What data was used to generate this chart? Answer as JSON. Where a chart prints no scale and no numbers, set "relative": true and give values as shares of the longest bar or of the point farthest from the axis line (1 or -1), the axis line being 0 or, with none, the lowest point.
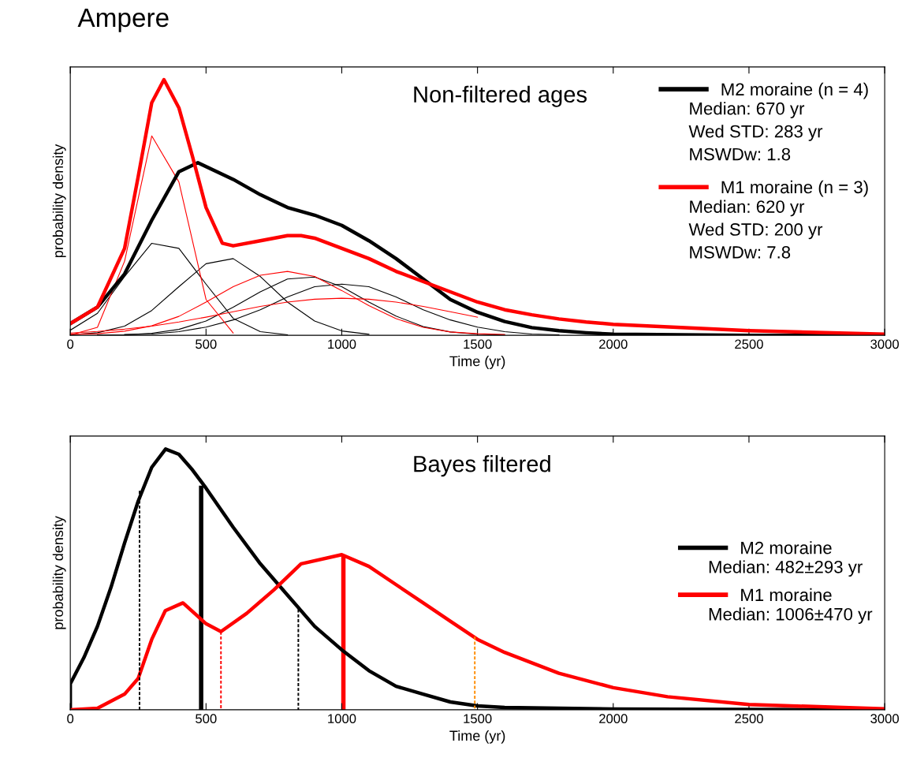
{
  "chart_data": [
    {
      "type": "line",
      "title": "Ampere",
      "subtitle": "Non-filtered ages",
      "xlabel": "Time (yr)",
      "ylabel": "probability density",
      "relative": true,
      "xlim": [
        0,
        3000
      ],
      "xticks": [
        0,
        500,
        1000,
        1500,
        2000,
        2500,
        3000
      ],
      "grid": false,
      "legend": "top right",
      "x": [
        0,
        100,
        200,
        300,
        400,
        500,
        600,
        700,
        800,
        900,
        1000,
        1100,
        1200,
        1300,
        1400,
        1500,
        1600,
        1700,
        1800
      ],
      "annotations": [
        "Median: 670 yr",
        "Wed STD: 283 yr",
        "MSWDw: 1.8",
        "Median: 620 yr",
        "Wed STD: 200 yr",
        "MSWDw: 7.8"
      ],
      "series": [
        {
          "color": "#000000",
          "values": [
            0.02,
            0.086,
            0.23,
            0.36,
            0.34,
            0.2,
            0.066,
            0.014,
            0.002,
            null,
            null,
            null,
            null,
            null,
            null,
            null,
            null,
            null,
            null
          ]
        },
        {
          "color": "#000000",
          "values": [
            0.002,
            0.01,
            0.036,
            0.097,
            0.19,
            0.28,
            0.3,
            0.23,
            0.13,
            0.056,
            0.017,
            0.004,
            null,
            null,
            null,
            null,
            null,
            null,
            null
          ]
        },
        {
          "color": "#000000",
          "values": [
            null,
            0.001,
            0.002,
            0.008,
            0.023,
            0.056,
            0.11,
            0.17,
            0.22,
            0.228,
            0.19,
            0.13,
            0.075,
            0.034,
            0.013,
            0.004,
            0.001,
            null,
            null
          ]
        },
        {
          "color": "#000000",
          "values": [
            null,
            null,
            0.003,
            0.005,
            0.014,
            0.032,
            0.06,
            0.1,
            0.15,
            0.19,
            0.2,
            0.19,
            0.15,
            0.1,
            0.06,
            0.032,
            0.014,
            0.005,
            0.002
          ]
        },
        {
          "color": "#ff0000",
          "values": [
            0.001,
            0.031,
            0.29,
            0.78,
            0.6,
            0.14,
            0.009,
            null,
            null,
            null,
            null,
            null,
            null,
            null,
            null,
            null,
            null,
            null,
            null
          ]
        },
        {
          "color": "#ff0000",
          "values": [
            0.004,
            0.006,
            0.016,
            0.037,
            0.074,
            0.13,
            0.19,
            0.235,
            0.25,
            0.23,
            0.175,
            0.116,
            0.065,
            0.031,
            0.013,
            0.006,
            0.003,
            null,
            null
          ]
        },
        {
          "color": "#ff0000",
          "values": [
            0.009,
            0.015,
            0.024,
            0.036,
            0.052,
            0.071,
            0.092,
            0.113,
            0.13,
            0.141,
            0.145,
            0.141,
            0.13,
            0.113,
            0.092,
            0.071,
            null,
            null,
            null
          ]
        },
        {
          "name": "M2 moraine (n = 4)",
          "color": "#000000",
          "x": [
            0,
            100,
            200,
            300,
            400,
            470,
            600,
            700,
            800,
            900,
            1000,
            1100,
            1200,
            1300,
            1400,
            1500,
            1600,
            1700,
            1800,
            1900,
            2000,
            2500,
            3000
          ],
          "values": [
            0.046,
            0.11,
            0.24,
            0.45,
            0.64,
            0.675,
            0.61,
            0.55,
            0.5,
            0.47,
            0.43,
            0.37,
            0.3,
            0.22,
            0.14,
            0.09,
            0.054,
            0.03,
            0.018,
            0.01,
            0.004,
            0,
            0
          ]
        },
        {
          "name": "M1 moraine (n = 3)",
          "color": "#ff0000",
          "x": [
            0,
            100,
            200,
            250,
            300,
            345,
            400,
            450,
            500,
            560,
            600,
            700,
            800,
            850,
            900,
            1000,
            1100,
            1200,
            1300,
            1400,
            1500,
            1600,
            1700,
            1800,
            1900,
            2000,
            2500,
            3000
          ],
          "values": [
            0.046,
            0.11,
            0.34,
            0.62,
            0.91,
            1.0,
            0.89,
            0.7,
            0.5,
            0.36,
            0.35,
            0.37,
            0.39,
            0.39,
            0.38,
            0.34,
            0.3,
            0.25,
            0.21,
            0.17,
            0.13,
            0.1,
            0.08,
            0.064,
            0.052,
            0.043,
            0.018,
            0.004
          ]
        }
      ]
    },
    {
      "type": "line",
      "title": "Bayes filtered",
      "xlabel": "Time (yr)",
      "ylabel": "probability density",
      "relative": true,
      "xlim": [
        0,
        3000
      ],
      "xticks": [
        0,
        500,
        1000,
        1500,
        2000,
        2500,
        3000
      ],
      "grid": false,
      "legend": "right",
      "annotations": [
        "Median: 482±293 yr",
        "Median: 1006±470 yr"
      ],
      "series": [
        {
          "color": "#000000",
          "line_style": "dashed",
          "x": [
            255,
            255
          ],
          "values": [
            0.84,
            0
          ]
        },
        {
          "color": "#ff0000",
          "line_style": "dashed",
          "x": [
            555,
            555
          ],
          "values": [
            0.3,
            0
          ]
        },
        {
          "color": "#000000",
          "line_style": "dashed",
          "x": [
            840,
            840
          ],
          "values": [
            0.385,
            0
          ]
        },
        {
          "color": "#ff8c00",
          "line_style": "dashed",
          "x": [
            1490,
            1490
          ],
          "values": [
            0.28,
            0
          ]
        },
        {
          "type": "bar",
          "color": "#000000",
          "x": [
            482
          ],
          "values": [
            0.86
          ]
        },
        {
          "type": "bar",
          "color": "#ff0000",
          "x": [
            1006
          ],
          "values": [
            0.595
          ]
        },
        {
          "name": "M2 moraine",
          "color": "#000000",
          "x": [
            0,
            0,
            50,
            100,
            150,
            200,
            250,
            300,
            351,
            400,
            450,
            500,
            600,
            700,
            800,
            900,
            1000,
            1100,
            1200,
            1300,
            1400,
            1500,
            1600,
            2000,
            3000
          ],
          "values": [
            0,
            0.1,
            0.2,
            0.32,
            0.47,
            0.64,
            0.8,
            0.93,
            1.0,
            0.98,
            0.92,
            0.85,
            0.7,
            0.56,
            0.44,
            0.32,
            0.23,
            0.15,
            0.09,
            0.06,
            0.03,
            0.015,
            0.009,
            0.003,
            0
          ]
        },
        {
          "name": "M1 moraine",
          "color": "#ff0000",
          "x": [
            0,
            100,
            200,
            250,
            300,
            350,
            415,
            500,
            555,
            650,
            750,
            850,
            1000,
            1100,
            1200,
            1300,
            1400,
            1500,
            1600,
            1800,
            2000,
            2200,
            2500,
            3000
          ],
          "values": [
            0,
            0.006,
            0.06,
            0.12,
            0.27,
            0.38,
            0.41,
            0.33,
            0.3,
            0.37,
            0.46,
            0.56,
            0.595,
            0.55,
            0.48,
            0.41,
            0.34,
            0.27,
            0.22,
            0.14,
            0.085,
            0.05,
            0.02,
            0.004
          ]
        }
      ]
    }
  ]
}
